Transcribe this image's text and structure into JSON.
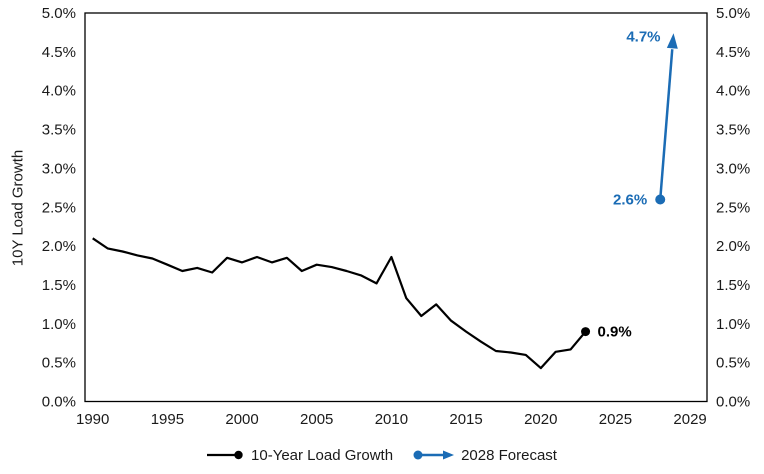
{
  "chart_data": {
    "type": "line",
    "title": "",
    "ylabel": "10Y Load Growth",
    "y_axis": {
      "min": 0,
      "max": 5,
      "step": 0.5,
      "tick_suffix": "%",
      "sides": "both",
      "grid": false
    },
    "x_axis": {
      "tick_labels": [
        "1990",
        "1995",
        "2000",
        "2005",
        "2010",
        "2015",
        "2020",
        "2025",
        "2029"
      ],
      "grid": false
    },
    "series": [
      {
        "name": "10-Year Load Growth",
        "color": "#000000",
        "years": [
          1990,
          1991,
          1992,
          1993,
          1994,
          1995,
          1996,
          1997,
          1998,
          1999,
          2000,
          2001,
          2002,
          2003,
          2004,
          2005,
          2006,
          2007,
          2008,
          2009,
          2010,
          2011,
          2012,
          2013,
          2014,
          2015,
          2016,
          2017,
          2018,
          2019,
          2020,
          2021,
          2022,
          2023
        ],
        "values": [
          2.1,
          1.97,
          1.93,
          1.88,
          1.84,
          1.76,
          1.68,
          1.72,
          1.66,
          1.85,
          1.79,
          1.86,
          1.79,
          1.85,
          1.68,
          1.76,
          1.73,
          1.68,
          1.62,
          1.52,
          1.86,
          1.33,
          1.1,
          1.25,
          1.04,
          0.9,
          0.77,
          0.65,
          0.63,
          0.6,
          0.43,
          0.64,
          0.67,
          0.9
        ],
        "end_label": "0.9%"
      },
      {
        "name": "2028 Forecast",
        "color": "#1b6cb5",
        "from": {
          "year": 2028,
          "value": 2.6,
          "label": "2.6%"
        },
        "to": {
          "value": 4.7,
          "label": "4.7%"
        }
      }
    ],
    "legend_position": "bottom"
  }
}
